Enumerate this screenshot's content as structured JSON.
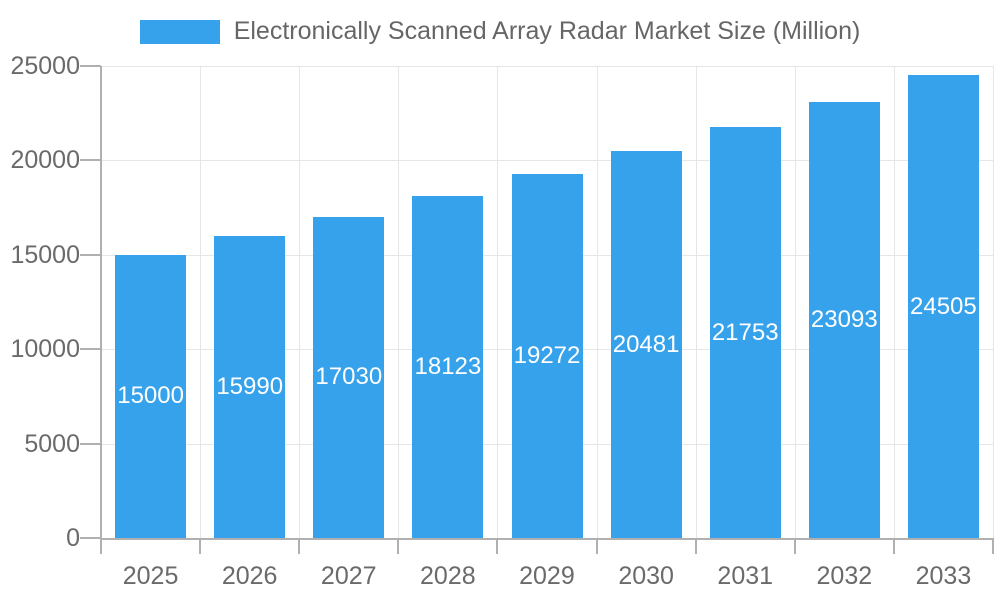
{
  "legend": {
    "label": "Electronically Scanned Array Radar Market Size (Million)"
  },
  "chart_data": {
    "type": "bar",
    "title": "Electronically Scanned Array Radar Market Size (Million)",
    "categories": [
      "2025",
      "2026",
      "2027",
      "2028",
      "2029",
      "2030",
      "2031",
      "2032",
      "2033"
    ],
    "values": [
      15000,
      15990,
      17030,
      18123,
      19272,
      20481,
      21753,
      23093,
      24505
    ],
    "xlabel": "",
    "ylabel": "",
    "ylim": [
      0,
      25000
    ],
    "y_ticks": [
      0,
      5000,
      10000,
      15000,
      20000,
      25000
    ],
    "grid": true,
    "legend_position": "top",
    "bar_labels_inside": true,
    "colors": {
      "bar": "#36A2EB",
      "grid": "#E6E6E6",
      "axis": "#B0B0B0",
      "tick_text": "#6A6A6D",
      "bar_label_text": "#FFFFFF"
    }
  }
}
